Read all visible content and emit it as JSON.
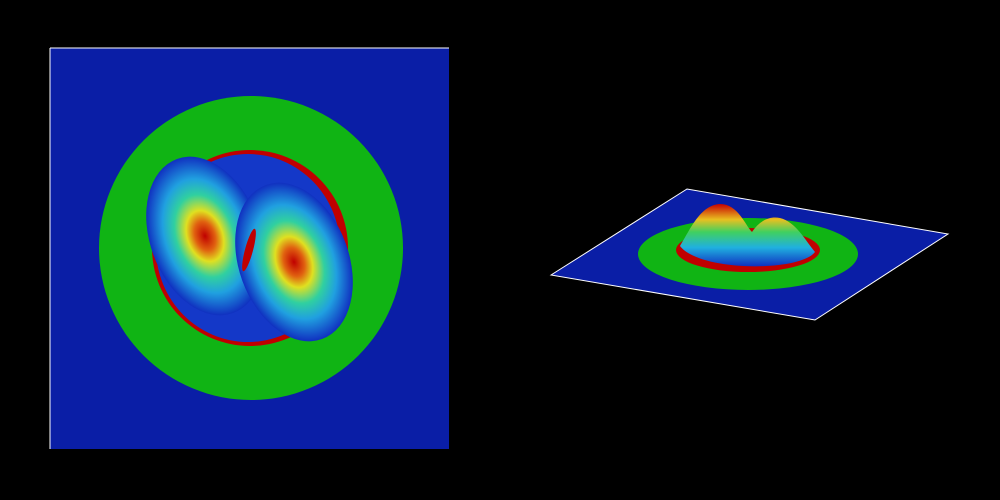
{
  "colors": {
    "background": "#000000",
    "field_low": "#0a1ea6",
    "ring": "#10b414",
    "rim": "#c00000",
    "peak": "#c80000",
    "mid_cyan": "#20c8c8",
    "mid_yellow": "#e0e020",
    "edge": "#ffffff"
  },
  "views": [
    {
      "kind": "top-down-heatmap"
    },
    {
      "kind": "3d-surface"
    }
  ]
}
